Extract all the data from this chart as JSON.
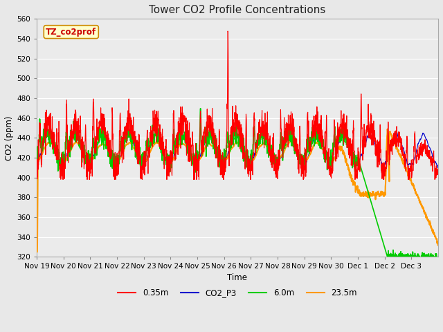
{
  "title": "Tower CO2 Profile Concentrations",
  "xlabel": "Time",
  "ylabel": "CO2 (ppm)",
  "ylim": [
    320,
    560
  ],
  "yticks": [
    320,
    340,
    360,
    380,
    400,
    420,
    440,
    460,
    480,
    500,
    520,
    540,
    560
  ],
  "fig_bg_color": "#e8e8e8",
  "plot_bg_color": "#ebebeb",
  "annotation_text": "TZ_co2prof",
  "annotation_bg": "#ffffcc",
  "annotation_border": "#cc8800",
  "legend_entries": [
    "0.35m",
    "CO2_P3",
    "6.0m",
    "23.5m"
  ],
  "line_colors": {
    "0.35m": "#ff0000",
    "CO2_P3": "#0000cc",
    "6.0m": "#00cc00",
    "23.5m": "#ff9900"
  },
  "line_widths": {
    "0.35m": 0.8,
    "CO2_P3": 0.8,
    "6.0m": 1.2,
    "23.5m": 1.5
  },
  "xticklabels": [
    "Nov 19",
    "Nov 20",
    "Nov 21",
    "Nov 22",
    "Nov 23",
    "Nov 24",
    "Nov 25",
    "Nov 26",
    "Nov 27",
    "Nov 28",
    "Nov 29",
    "Nov 30",
    "Dec 1",
    "Dec 2",
    "Dec 3"
  ],
  "grid_color": "#ffffff",
  "grid_linewidth": 0.8
}
